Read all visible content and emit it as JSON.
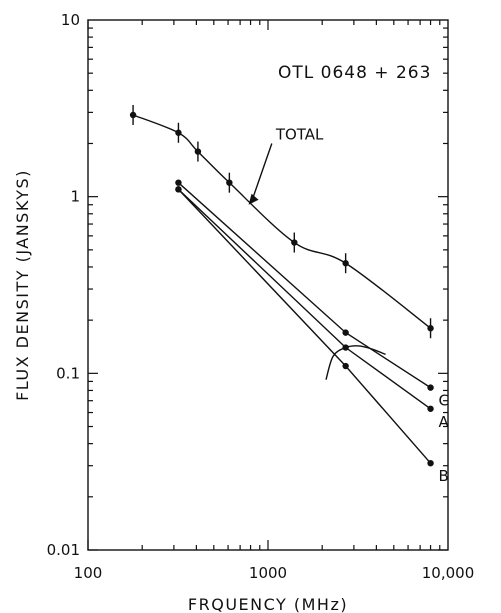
{
  "chart_data": {
    "type": "line",
    "title": "OTL 0648 + 263",
    "xlabel": "FRQUENCY (MHz)",
    "ylabel": "FLUX DENSITY (JANSKYS)",
    "xscale": "log",
    "yscale": "log",
    "xlim": [
      100,
      10000
    ],
    "ylim": [
      0.01,
      10
    ],
    "x_tick_labels": [
      "100",
      "1000",
      "10,000"
    ],
    "y_tick_labels": [
      "10",
      "1",
      "0.1",
      "0.01"
    ],
    "grid": false,
    "legend": "none",
    "series": [
      {
        "name": "TOTAL",
        "x": [
          178,
          318,
          408,
          610,
          1400,
          2700,
          8000
        ],
        "y": [
          2.9,
          2.3,
          1.8,
          1.2,
          0.55,
          0.42,
          0.18
        ],
        "error_bars": true
      },
      {
        "name": "C",
        "x": [
          318,
          2700,
          8000
        ],
        "y": [
          1.2,
          0.17,
          0.083
        ]
      },
      {
        "name": "A",
        "x": [
          318,
          2700,
          8000
        ],
        "y": [
          1.1,
          0.14,
          0.063
        ]
      },
      {
        "name": "B",
        "x": [
          318,
          2700,
          8000
        ],
        "y": [
          1.1,
          0.11,
          0.031
        ]
      }
    ],
    "annotations": [
      {
        "text": "TOTAL",
        "target_series": "TOTAL"
      }
    ],
    "turnover_curve": {
      "x": [
        2100,
        2300,
        2700,
        3200,
        3800,
        4500
      ],
      "y": [
        0.092,
        0.125,
        0.14,
        0.143,
        0.137,
        0.128
      ]
    }
  }
}
